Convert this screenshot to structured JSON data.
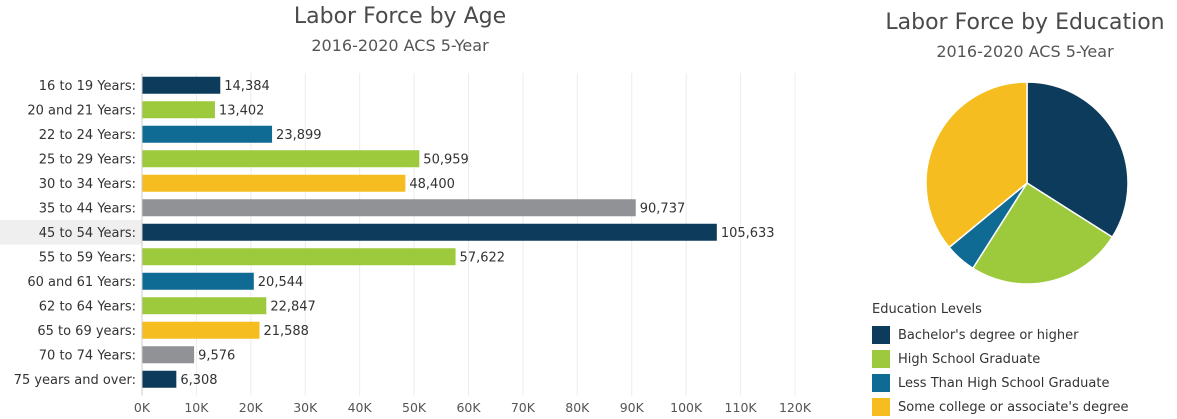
{
  "chart_data": [
    {
      "type": "bar",
      "orientation": "horizontal",
      "title": "Labor Force by Age",
      "subtitle": "2016-2020 ACS 5-Year",
      "categories": [
        "16 to 19 Years:",
        "20 and 21 Years:",
        "22 to 24 Years:",
        "25 to 29 Years:",
        "30 to 34 Years:",
        "35 to 44 Years:",
        "45 to 54 Years:",
        "55 to 59 Years:",
        "60 and 61 Years:",
        "62 to 64 Years:",
        "65 to 69 years:",
        "70 to 74 Years:",
        "75 years and over:"
      ],
      "values": [
        14384,
        13402,
        23899,
        50959,
        48400,
        90737,
        105633,
        57622,
        20544,
        22847,
        21588,
        9576,
        6308
      ],
      "value_labels": [
        "14,384",
        "13,402",
        "23,899",
        "50,959",
        "48,400",
        "90,737",
        "105,633",
        "57,622",
        "20,544",
        "22,847",
        "21,588",
        "9,576",
        "6,308"
      ],
      "colors": [
        "#0d3b5c",
        "#9dc93c",
        "#0f6a94",
        "#9dc93c",
        "#f5bd1f",
        "#919296",
        "#0d3b5c",
        "#9dc93c",
        "#0f6a94",
        "#9dc93c",
        "#f5bd1f",
        "#919296",
        "#0d3b5c"
      ],
      "highlighted_category": "45 to 54 Years:",
      "xlim": [
        0,
        120000
      ],
      "x_ticks": [
        0,
        10000,
        20000,
        30000,
        40000,
        50000,
        60000,
        70000,
        80000,
        90000,
        100000,
        110000,
        120000
      ],
      "x_tick_labels": [
        "0K",
        "10K",
        "20K",
        "30K",
        "40K",
        "50K",
        "60K",
        "70K",
        "80K",
        "90K",
        "100K",
        "110K",
        "120K"
      ],
      "grid": "vertical",
      "xlabel": "",
      "ylabel": ""
    },
    {
      "type": "pie",
      "title": "Labor Force by Education",
      "subtitle": "2016-2020 ACS 5-Year",
      "legend_title": "Education Levels",
      "legend_position": "bottom",
      "labels": [
        "Bachelor's degree or higher",
        "High School Graduate",
        "Less Than High School Graduate",
        "Some college or associate's degree"
      ],
      "values": [
        34,
        25,
        5,
        36
      ],
      "colors": [
        "#0d3b5c",
        "#9dc93c",
        "#0f6a94",
        "#f5bd1f"
      ]
    }
  ]
}
